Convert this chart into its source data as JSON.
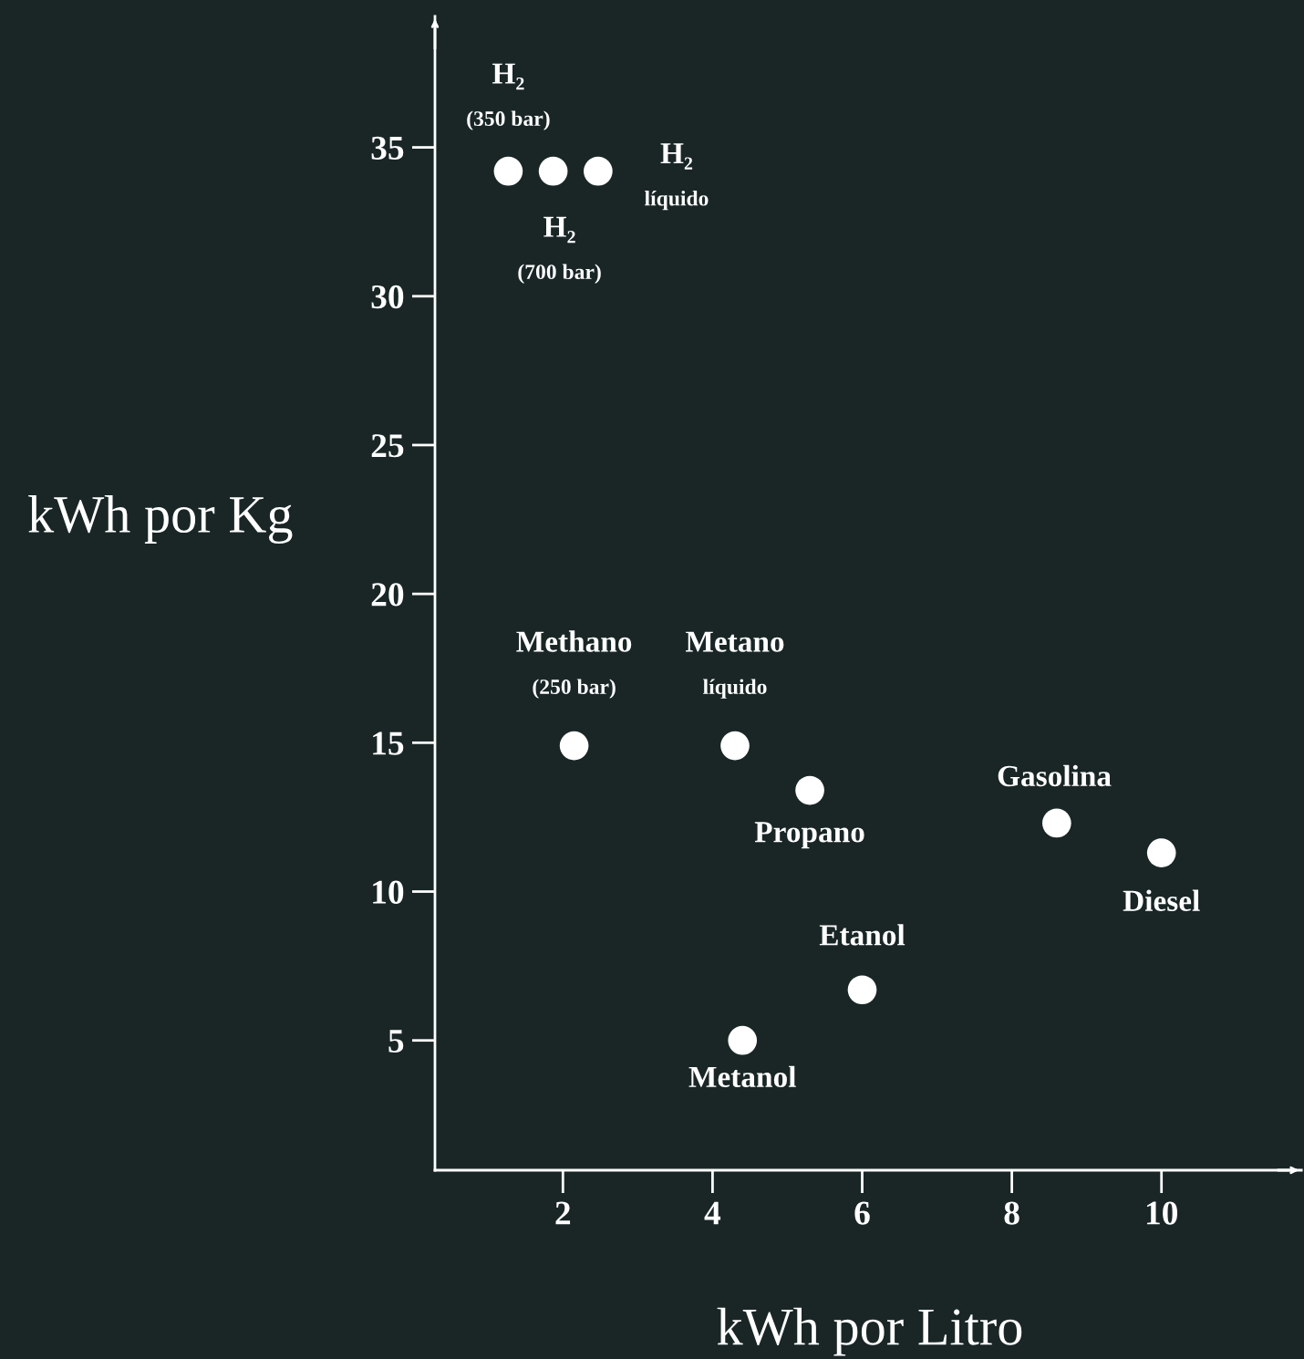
{
  "chart_data": {
    "type": "scatter",
    "xlabel": "kWh por Litro",
    "ylabel": "kWh por Kg",
    "x": [
      1.27,
      1.87,
      2.47,
      2.15,
      4.3,
      5.3,
      8.6,
      10.0,
      6.0,
      4.4
    ],
    "series": [
      {
        "color": "#ffffff",
        "values": [
          34.2,
          34.2,
          34.2,
          14.9,
          14.9,
          13.4,
          12.3,
          11.3,
          6.7,
          5.0
        ]
      }
    ],
    "marker": "circle",
    "grid": false,
    "legend": false,
    "xlim": [
      0.29,
      11.87
    ],
    "ylim": [
      0.64,
      39.4
    ],
    "xticks": [
      2,
      4,
      6,
      8,
      10
    ],
    "yticks": [
      5,
      10,
      15,
      20,
      25,
      30,
      35
    ],
    "annotations": [
      {
        "text": "H₂\n(350 bar)",
        "x": 1.27,
        "y": 34.2
      },
      {
        "text": "H₂\n(700 bar)",
        "x": 1.87,
        "y": 34.2
      },
      {
        "text": "H₂\nlíquido",
        "x": 2.47,
        "y": 34.2
      },
      {
        "text": "Methano\n(250 bar)",
        "x": 2.15,
        "y": 14.9
      },
      {
        "text": "Metano\nlíquido",
        "x": 4.3,
        "y": 14.9
      },
      {
        "text": "Propano",
        "x": 5.3,
        "y": 13.4
      },
      {
        "text": "Gasolina",
        "x": 8.6,
        "y": 12.3
      },
      {
        "text": "Diesel",
        "x": 10.0,
        "y": 11.3
      },
      {
        "text": "Etanol",
        "x": 6.0,
        "y": 6.7
      },
      {
        "text": "Metanol",
        "x": 4.4,
        "y": 5.0
      }
    ]
  }
}
